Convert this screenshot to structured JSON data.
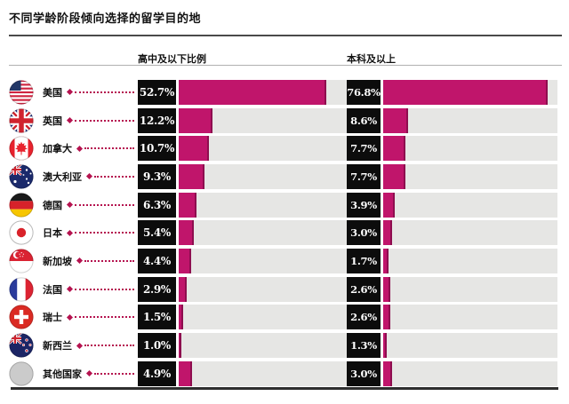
{
  "title": "不同学龄阶段倾向选择的留学目的地",
  "columns": {
    "left_header": "高中及以下比例",
    "right_header": "本科及以上"
  },
  "rows": [
    {
      "country": "美国",
      "flag_icon": "us-flag-icon",
      "hs_label": "52.7%",
      "ba_label": "76.8%",
      "hs": 52.7,
      "ba": 76.8
    },
    {
      "country": "英国",
      "flag_icon": "uk-flag-icon",
      "hs_label": "12.2%",
      "ba_label": "8.6%",
      "hs": 12.2,
      "ba": 8.6
    },
    {
      "country": "加拿大",
      "flag_icon": "canada-flag-icon",
      "hs_label": "10.7%",
      "ba_label": "7.7%",
      "hs": 10.7,
      "ba": 7.7
    },
    {
      "country": "澳大利亚",
      "flag_icon": "australia-flag-icon",
      "hs_label": "9.3%",
      "ba_label": "7.7%",
      "hs": 9.3,
      "ba": 7.7
    },
    {
      "country": "德国",
      "flag_icon": "germany-flag-icon",
      "hs_label": "6.3%",
      "ba_label": "3.9%",
      "hs": 6.3,
      "ba": 3.9
    },
    {
      "country": "日本",
      "flag_icon": "japan-flag-icon",
      "hs_label": "5.4%",
      "ba_label": "3.0%",
      "hs": 5.4,
      "ba": 3.0
    },
    {
      "country": "新加坡",
      "flag_icon": "singapore-flag-icon",
      "hs_label": "4.4%",
      "ba_label": "1.7%",
      "hs": 4.4,
      "ba": 1.7
    },
    {
      "country": "法国",
      "flag_icon": "france-flag-icon",
      "hs_label": "2.9%",
      "ba_label": "2.6%",
      "hs": 2.9,
      "ba": 2.6
    },
    {
      "country": "瑞士",
      "flag_icon": "switzerland-flag-icon",
      "hs_label": "1.5%",
      "ba_label": "2.6%",
      "hs": 1.5,
      "ba": 2.6
    },
    {
      "country": "新西兰",
      "flag_icon": "new-zealand-flag-icon",
      "hs_label": "1.0%",
      "ba_label": "1.3%",
      "hs": 1.0,
      "ba": 1.3
    },
    {
      "country": "其他国家",
      "flag_icon": "other-countries-icon",
      "hs_label": "4.9%",
      "ba_label": "3.0%",
      "hs": 4.9,
      "ba": 3.0
    }
  ],
  "chart_data": {
    "type": "bar",
    "orientation": "horizontal",
    "title": "不同学龄阶段倾向选择的留学目的地",
    "categories": [
      "美国",
      "英国",
      "加拿大",
      "澳大利亚",
      "德国",
      "日本",
      "新加坡",
      "法国",
      "瑞士",
      "新西兰",
      "其他国家"
    ],
    "series": [
      {
        "name": "高中及以下比例",
        "values": [
          52.7,
          12.2,
          10.7,
          9.3,
          6.3,
          5.4,
          4.4,
          2.9,
          1.5,
          1.0,
          4.9
        ]
      },
      {
        "name": "本科及以上",
        "values": [
          76.8,
          8.6,
          7.7,
          7.7,
          3.9,
          3.0,
          1.7,
          2.6,
          2.6,
          1.3,
          3.0
        ]
      }
    ],
    "value_suffix": "%",
    "axis_capacity_pct": 60,
    "grid": false,
    "legend_position": "column-headers"
  },
  "colors": {
    "bar": "#c0156b",
    "bar_edge": "#8e0e4f",
    "track": "#e6e6e4",
    "value_box_bg": "#0c0c0c",
    "value_text": "#ffffff",
    "leader": "#b5134f"
  }
}
